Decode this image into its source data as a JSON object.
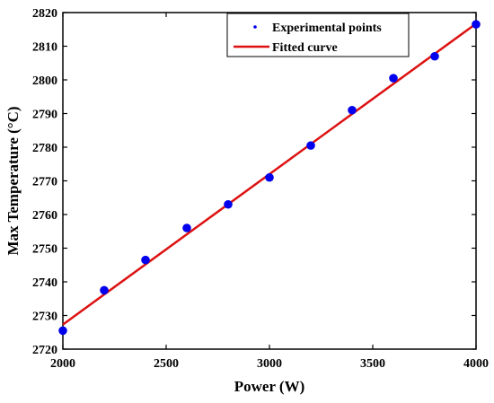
{
  "chart_data": {
    "type": "scatter",
    "xlabel": "Power (W)",
    "ylabel": "Max Temperature (°C)",
    "xlim": [
      2000,
      4000
    ],
    "ylim": [
      2720,
      2820
    ],
    "x_ticks": [
      2000,
      2500,
      3000,
      3500,
      4000
    ],
    "y_ticks": [
      2720,
      2730,
      2740,
      2750,
      2760,
      2770,
      2780,
      2790,
      2800,
      2810,
      2820
    ],
    "grid": false,
    "legend_position": "top-right",
    "series": [
      {
        "name": "Experimental points",
        "kind": "scatter",
        "color": "#0000ee",
        "x": [
          2000,
          2200,
          2400,
          2600,
          2800,
          3000,
          3200,
          3400,
          3600,
          3800,
          4000
        ],
        "y": [
          2725.5,
          2737.5,
          2746.5,
          2756,
          2763,
          2771,
          2780.5,
          2791,
          2800.5,
          2807,
          2816.5
        ]
      },
      {
        "name": "Fitted curve",
        "kind": "line",
        "color": "#dd1111",
        "x": [
          2000,
          4000
        ],
        "y": [
          2727.3,
          2816.7
        ]
      }
    ]
  }
}
